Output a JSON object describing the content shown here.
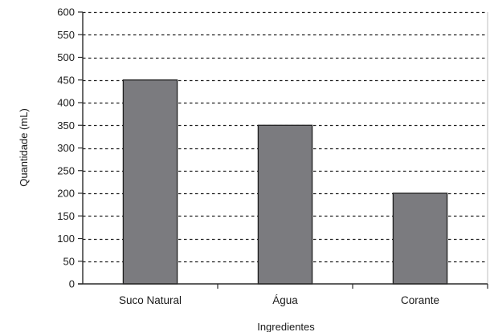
{
  "chart_data": {
    "type": "bar",
    "categories": [
      "Suco Natural",
      "Água",
      "Corante"
    ],
    "values": [
      450,
      350,
      200
    ],
    "title": "",
    "xlabel": "Ingredientes",
    "ylabel": "Quantidade (mL)",
    "ylim": [
      0,
      600
    ],
    "ytick_step": 50,
    "yticks": [
      "0",
      "50",
      "100",
      "150",
      "200",
      "250",
      "300",
      "350",
      "400",
      "450",
      "500",
      "550",
      "600"
    ],
    "grid": true,
    "grid_style": "dashed",
    "legend": "none",
    "colors": {
      "bar_fill": "#7b7b7f",
      "bar_stroke": "#1e1e1e",
      "axis": "#2a2a2a",
      "grid": "#1e1e1e",
      "plot_border": "#bfbfbf",
      "text": "#1a1a1a"
    }
  }
}
